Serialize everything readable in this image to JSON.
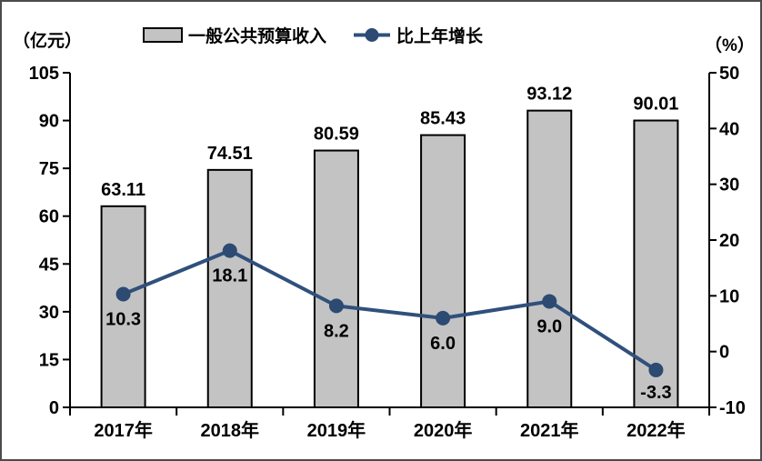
{
  "chart_data": {
    "type": "bar+line combo",
    "categories": [
      "2017年",
      "2018年",
      "2019年",
      "2020年",
      "2021年",
      "2022年"
    ],
    "series": [
      {
        "name": "一般公共预算收入",
        "type": "bar",
        "axis": "left",
        "values": [
          63.11,
          74.51,
          80.59,
          85.43,
          93.12,
          90.01
        ],
        "labels": [
          "63.11",
          "74.51",
          "80.59",
          "85.43",
          "93.12",
          "90.01"
        ],
        "color": "#c3c3c3",
        "border": "#000000"
      },
      {
        "name": "比上年增长",
        "type": "line",
        "axis": "right",
        "values": [
          10.3,
          18.1,
          8.2,
          6.0,
          9.0,
          -3.3
        ],
        "labels": [
          "10.3",
          "18.1",
          "8.2",
          "6.0",
          "9.0",
          "-3.3"
        ],
        "color": "#30507c",
        "marker_color": "#2c4a72"
      }
    ],
    "left_axis": {
      "unit": "（亿元）",
      "min": 0,
      "max": 105,
      "step": 15
    },
    "right_axis": {
      "unit": "（%）",
      "min": -10,
      "max": 50,
      "step": 10
    },
    "legend_position": "top",
    "grid": "off",
    "axis_color": "#000000",
    "background": "#ffffff"
  }
}
